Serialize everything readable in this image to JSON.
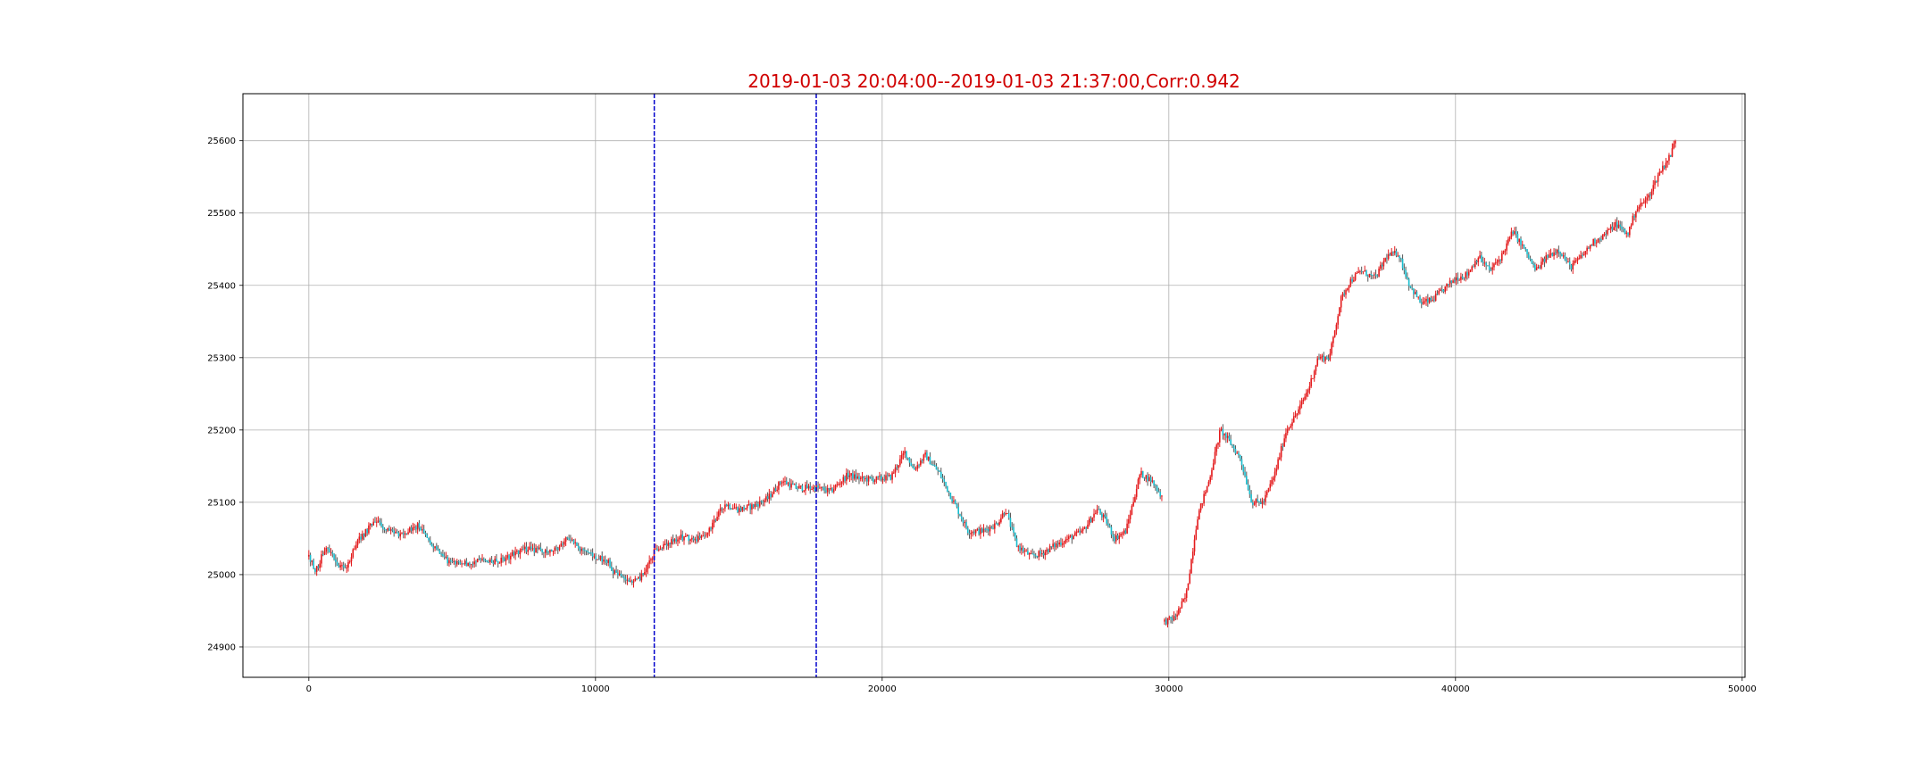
{
  "chart_data": {
    "type": "candlestick",
    "title": "2019-01-03 20:04:00--2019-01-03 21:37:00,Corr:0.942",
    "title_color": "#d00000",
    "xlabel": "",
    "ylabel": "",
    "xlim": [
      -2300,
      50100
    ],
    "ylim": [
      24858,
      25665
    ],
    "x_ticks": [
      0,
      10000,
      20000,
      30000,
      40000,
      50000
    ],
    "y_ticks": [
      24900,
      25000,
      25100,
      25200,
      25300,
      25400,
      25500,
      25600
    ],
    "grid": true,
    "up_color": "#e31a1c",
    "down_color": "#17becf",
    "wick_color": "#555555",
    "marker_color": "#0000cc",
    "vertical_markers": [
      12050,
      17700
    ],
    "price_path": [
      [
        0,
        25025
      ],
      [
        250,
        25005
      ],
      [
        600,
        25040
      ],
      [
        800,
        25030
      ],
      [
        1000,
        25015
      ],
      [
        1300,
        25005
      ],
      [
        1600,
        25040
      ],
      [
        2000,
        25060
      ],
      [
        2300,
        25075
      ],
      [
        2700,
        25060
      ],
      [
        3300,
        25055
      ],
      [
        3800,
        25068
      ],
      [
        4100,
        25050
      ],
      [
        4600,
        25025
      ],
      [
        5000,
        25015
      ],
      [
        5500,
        25015
      ],
      [
        6000,
        25020
      ],
      [
        6500,
        25018
      ],
      [
        7000,
        25025
      ],
      [
        7500,
        25035
      ],
      [
        8000,
        25035
      ],
      [
        8500,
        25030
      ],
      [
        9000,
        25050
      ],
      [
        9500,
        25035
      ],
      [
        10000,
        25025
      ],
      [
        10400,
        25020
      ],
      [
        10700,
        25000
      ],
      [
        11000,
        24995
      ],
      [
        11300,
        24990
      ],
      [
        11700,
        25000
      ],
      [
        12050,
        25032
      ],
      [
        12400,
        25040
      ],
      [
        13000,
        25052
      ],
      [
        13500,
        25048
      ],
      [
        14000,
        25062
      ],
      [
        14500,
        25098
      ],
      [
        15000,
        25090
      ],
      [
        15500,
        25095
      ],
      [
        16000,
        25105
      ],
      [
        16500,
        25130
      ],
      [
        17000,
        25120
      ],
      [
        17700,
        25120
      ],
      [
        18200,
        25115
      ],
      [
        18800,
        25138
      ],
      [
        19300,
        25132
      ],
      [
        19800,
        25132
      ],
      [
        20300,
        25135
      ],
      [
        20800,
        25170
      ],
      [
        21100,
        25145
      ],
      [
        21500,
        25165
      ],
      [
        22000,
        25140
      ],
      [
        22500,
        25100
      ],
      [
        23000,
        25060
      ],
      [
        23500,
        25060
      ],
      [
        24000,
        25070
      ],
      [
        24300,
        25090
      ],
      [
        24700,
        25040
      ],
      [
        25200,
        25025
      ],
      [
        25600,
        25030
      ],
      [
        26000,
        25040
      ],
      [
        26500,
        25050
      ],
      [
        27000,
        25060
      ],
      [
        27500,
        25090
      ],
      [
        27800,
        25075
      ],
      [
        28100,
        25050
      ],
      [
        28500,
        25060
      ],
      [
        29000,
        25140
      ],
      [
        29400,
        25130
      ],
      [
        29800,
        25105
      ],
      null,
      [
        29850,
        24935
      ],
      [
        30200,
        24940
      ],
      [
        30600,
        24970
      ],
      [
        31000,
        25080
      ],
      [
        31400,
        25130
      ],
      [
        31800,
        25200
      ],
      [
        32100,
        25185
      ],
      [
        32500,
        25160
      ],
      [
        32900,
        25100
      ],
      [
        33300,
        25100
      ],
      [
        33700,
        25140
      ],
      [
        34100,
        25200
      ],
      [
        34500,
        25225
      ],
      [
        34900,
        25260
      ],
      [
        35200,
        25300
      ],
      [
        35600,
        25300
      ],
      [
        36000,
        25380
      ],
      [
        36300,
        25405
      ],
      [
        36700,
        25420
      ],
      [
        37200,
        25410
      ],
      [
        37600,
        25440
      ],
      [
        38000,
        25445
      ],
      [
        38400,
        25400
      ],
      [
        38800,
        25375
      ],
      [
        39200,
        25380
      ],
      [
        39600,
        25395
      ],
      [
        40000,
        25410
      ],
      [
        40400,
        25415
      ],
      [
        40800,
        25440
      ],
      [
        41200,
        25420
      ],
      [
        41600,
        25440
      ],
      [
        42000,
        25475
      ],
      [
        42400,
        25450
      ],
      [
        42800,
        25420
      ],
      [
        43200,
        25440
      ],
      [
        43600,
        25450
      ],
      [
        44000,
        25425
      ],
      [
        44400,
        25440
      ],
      [
        44800,
        25460
      ],
      [
        45200,
        25470
      ],
      [
        45600,
        25485
      ],
      [
        46000,
        25470
      ],
      [
        46300,
        25505
      ],
      [
        46700,
        25520
      ],
      [
        47100,
        25555
      ],
      [
        47500,
        25580
      ],
      [
        47700,
        25605
      ]
    ]
  }
}
